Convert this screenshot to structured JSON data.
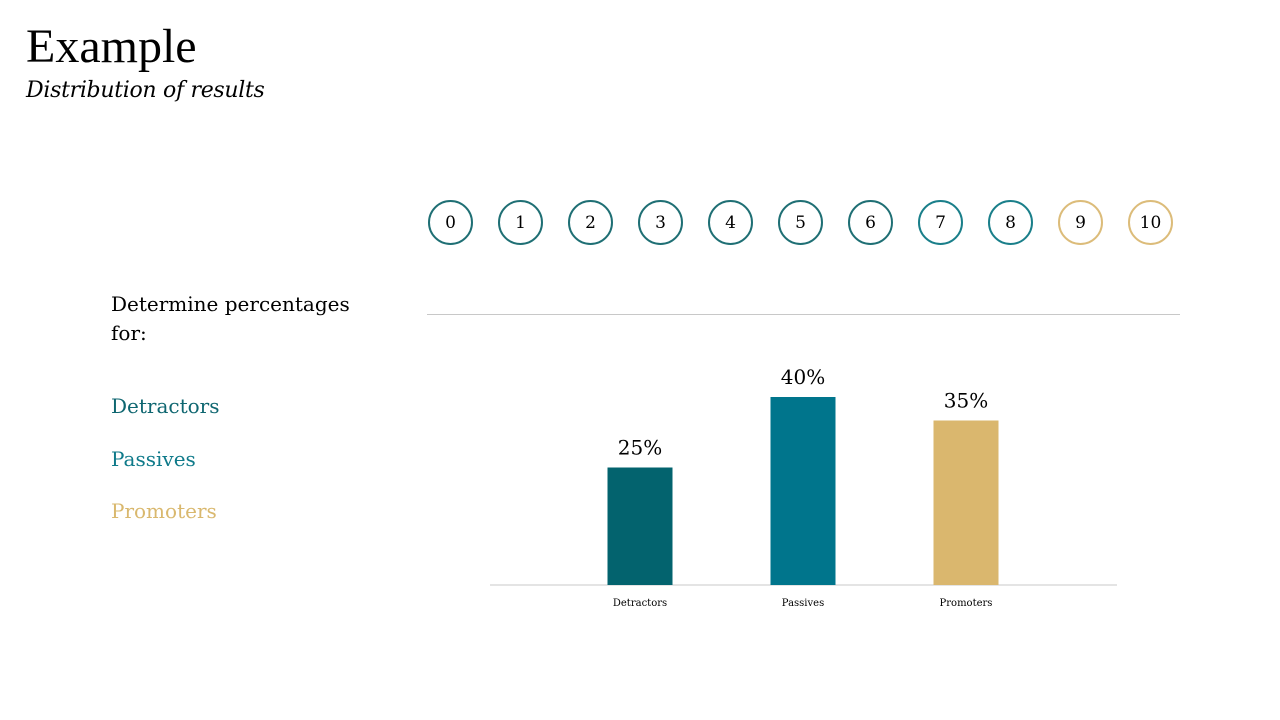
{
  "header": {
    "title": "Example",
    "subtitle": "Distribution of results"
  },
  "scale": {
    "items": [
      {
        "label": "0",
        "color": "#1f6f74"
      },
      {
        "label": "1",
        "color": "#1f6f74"
      },
      {
        "label": "2",
        "color": "#1f6f74"
      },
      {
        "label": "3",
        "color": "#1f6f74"
      },
      {
        "label": "4",
        "color": "#1f6f74"
      },
      {
        "label": "5",
        "color": "#1f6f74"
      },
      {
        "label": "6",
        "color": "#1f6f74"
      },
      {
        "label": "7",
        "color": "#1a7f8a"
      },
      {
        "label": "8",
        "color": "#1a7f8a"
      },
      {
        "label": "9",
        "color": "#dcbc7a"
      },
      {
        "label": "10",
        "color": "#dcbc7a"
      }
    ]
  },
  "prompt": "Determine percentages for:",
  "legend": [
    {
      "label": "Detractors",
      "color": "#0e6670"
    },
    {
      "label": "Passives",
      "color": "#0f7a8a"
    },
    {
      "label": "Promoters",
      "color": "#d9b86e"
    }
  ],
  "chart_data": {
    "type": "bar",
    "categories": [
      "Detractors",
      "Passives",
      "Promoters"
    ],
    "values": [
      25,
      40,
      35
    ],
    "value_labels": [
      "25%",
      "40%",
      "35%"
    ],
    "colors": [
      "#03636e",
      "#00758c",
      "#dab76e"
    ],
    "ylim": [
      0,
      40
    ],
    "grid": false,
    "xlabel": "",
    "ylabel": ""
  }
}
